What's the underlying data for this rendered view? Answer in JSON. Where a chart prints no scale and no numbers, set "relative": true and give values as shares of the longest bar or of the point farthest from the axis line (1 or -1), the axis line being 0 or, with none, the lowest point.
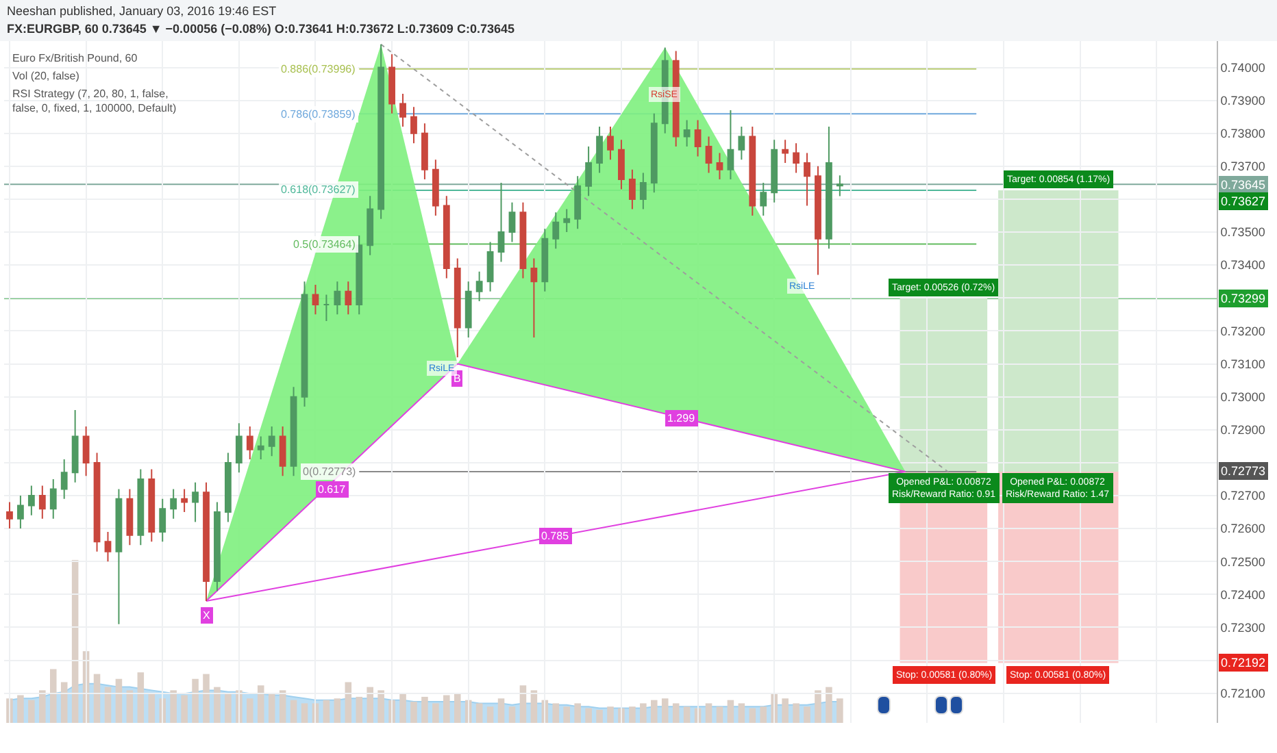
{
  "chart_data": [
    {
      "type": "candlestick",
      "subtitle": "Neeshan published, January 03, 2016 19:46 EST",
      "title": "FX:EURGBP, 60 0.73645 ▼ −0.00056 (−0.08%) O:0.73641 H:0.73672 L:0.73609 C:0.73645",
      "categories": [
        null,
        null,
        null,
        null,
        null,
        null,
        null,
        null,
        null,
        null,
        null,
        null,
        null,
        null,
        null,
        null,
        null,
        null,
        null,
        null,
        null,
        null,
        null,
        null,
        null,
        null,
        null,
        null,
        null,
        null,
        null,
        null,
        null,
        null,
        null,
        null,
        null,
        null,
        null,
        null,
        null,
        null,
        null,
        null,
        null,
        null,
        null,
        null,
        null,
        null,
        null,
        null,
        null,
        null,
        null,
        null,
        null,
        null,
        null,
        null,
        null,
        null,
        null,
        null,
        null,
        null,
        null,
        null,
        null,
        null,
        null,
        null,
        null,
        null,
        null,
        null,
        null,
        null,
        null,
        null,
        null,
        null,
        null,
        null,
        null,
        null,
        null,
        null,
        null,
        null,
        null,
        null,
        null,
        null,
        null,
        null,
        null,
        null,
        null,
        null,
        null,
        null,
        null,
        null,
        null,
        null,
        null,
        null,
        null,
        null,
        null
      ],
      "colors": [
        "#c9473d",
        "#4f9a62",
        "#4f9a62",
        "#c9473d",
        "#4f9a62",
        "#4f9a62",
        "#4f9a62",
        "#c9473d",
        "#c9473d",
        "#c9473d",
        "#4f9a62",
        "#c9473d",
        "#4f9a62",
        "#c9473d",
        "#4f9a62",
        "#4f9a62",
        "#c9473d",
        "#4f9a62",
        "#c9473d",
        "#4f9a62",
        "#4f9a62",
        "#4f9a62",
        "#c9473d",
        "#4f9a62",
        "#4f9a62",
        "#c9473d",
        "#4f9a62",
        "#4f9a62",
        "#c9473d",
        "#4f9a62",
        "#4f9a62",
        "#c9473d",
        "#4f9a62",
        "#4f9a62",
        "#4f9a62",
        "#c9473d",
        "#c9473d",
        "#c9473d",
        "#c9473d",
        "#c9473d",
        "#c9473d",
        "#c9473d",
        "#4f9a62",
        "#4f9a62",
        "#4f9a62",
        "#4f9a62",
        "#4f9a62",
        "#c9473d",
        "#c9473d",
        "#4f9a62",
        "#4f9a62",
        "#4f9a62",
        "#4f9a62",
        "#4f9a62",
        "#4f9a62",
        "#c9473d",
        "#c9473d",
        "#c9473d",
        "#4f9a62",
        "#4f9a62",
        "#4f9a62",
        "#c9473d",
        "#4f9a62",
        "#c9473d",
        "#c9473d",
        "#c9473d",
        "#4f9a62",
        "#4f9a62",
        "#c9473d",
        "#4f9a62",
        "#4f9a62",
        "#c9473d",
        "#c9473d",
        "#c9473d",
        "#c9473d",
        "#4f9a62",
        "#4f9a62",
        null,
        null,
        null,
        null,
        null,
        null,
        null,
        null,
        null,
        null,
        null,
        null,
        null,
        null,
        null,
        null,
        null,
        null,
        null,
        null,
        null,
        null,
        null,
        null,
        null,
        null,
        null,
        null,
        null,
        null,
        null,
        null,
        null,
        null
      ],
      "ohlc": [
        [
          0.7265,
          0.7268,
          0.726,
          0.7263
        ],
        [
          0.7263,
          0.727,
          0.726,
          0.7267
        ],
        [
          0.7267,
          0.7273,
          0.7264,
          0.727
        ],
        [
          0.727,
          0.7273,
          0.7263,
          0.7266
        ],
        [
          0.7266,
          0.7275,
          0.7263,
          0.7272
        ],
        [
          0.7272,
          0.7281,
          0.7269,
          0.7277
        ],
        [
          0.7277,
          0.7296,
          0.7274,
          0.7288
        ],
        [
          0.7288,
          0.7291,
          0.7276,
          0.728
        ],
        [
          0.728,
          0.7283,
          0.7253,
          0.7256
        ],
        [
          0.7256,
          0.7259,
          0.725,
          0.7253
        ],
        [
          0.7253,
          0.7272,
          0.7231,
          0.7269
        ],
        [
          0.7269,
          0.7272,
          0.7255,
          0.7258
        ],
        [
          0.7258,
          0.7278,
          0.7255,
          0.7275
        ],
        [
          0.7275,
          0.7278,
          0.7256,
          0.7259
        ],
        [
          0.7259,
          0.7269,
          0.7256,
          0.7266
        ],
        [
          0.7266,
          0.7272,
          0.7263,
          0.7269
        ],
        [
          0.7269,
          0.7272,
          0.7265,
          0.7268
        ],
        [
          0.7268,
          0.7274,
          0.7262,
          0.7271
        ],
        [
          0.7271,
          0.7274,
          0.7238,
          0.7244
        ],
        [
          0.7244,
          0.7268,
          0.7241,
          0.7265
        ],
        [
          0.7265,
          0.7283,
          0.7262,
          0.728
        ],
        [
          0.728,
          0.7292,
          0.7277,
          0.7288
        ],
        [
          0.7288,
          0.7291,
          0.7281,
          0.7284
        ],
        [
          0.7284,
          0.7288,
          0.7281,
          0.7285
        ],
        [
          0.7285,
          0.7291,
          0.7282,
          0.7288
        ],
        [
          0.7288,
          0.7291,
          0.7276,
          0.7279
        ],
        [
          0.7279,
          0.7303,
          0.7276,
          0.73
        ],
        [
          0.73,
          0.7335,
          0.7297,
          0.7331
        ],
        [
          0.7331,
          0.7334,
          0.7325,
          0.7328
        ],
        [
          0.7328,
          0.7331,
          0.7323,
          0.7328
        ],
        [
          0.7328,
          0.7335,
          0.7325,
          0.7332
        ],
        [
          0.7332,
          0.7335,
          0.7325,
          0.7328
        ],
        [
          0.7328,
          0.7349,
          0.7325,
          0.7346
        ],
        [
          0.7346,
          0.7361,
          0.7343,
          0.7357
        ],
        [
          0.7357,
          0.7407,
          0.7354,
          0.74
        ],
        [
          0.74,
          0.7404,
          0.7386,
          0.7389
        ],
        [
          0.7389,
          0.7392,
          0.7382,
          0.7385
        ],
        [
          0.7385,
          0.7388,
          0.7377,
          0.738
        ],
        [
          0.738,
          0.7383,
          0.7366,
          0.7369
        ],
        [
          0.7369,
          0.7372,
          0.7355,
          0.7358
        ],
        [
          0.7358,
          0.7361,
          0.7336,
          0.7339
        ],
        [
          0.7339,
          0.7342,
          0.7312,
          0.7321
        ],
        [
          0.7321,
          0.7335,
          0.7318,
          0.7332
        ],
        [
          0.7332,
          0.7338,
          0.7329,
          0.7335
        ],
        [
          0.7335,
          0.7347,
          0.7332,
          0.7344
        ],
        [
          0.7344,
          0.7365,
          0.7341,
          0.735
        ],
        [
          0.735,
          0.7359,
          0.7347,
          0.7356
        ],
        [
          0.7356,
          0.7359,
          0.7336,
          0.7339
        ],
        [
          0.7339,
          0.7342,
          0.7318,
          0.7335
        ],
        [
          0.7335,
          0.7351,
          0.7332,
          0.7348
        ],
        [
          0.7348,
          0.7356,
          0.7345,
          0.7353
        ],
        [
          0.7353,
          0.7357,
          0.735,
          0.7354
        ],
        [
          0.7354,
          0.7367,
          0.7351,
          0.7364
        ],
        [
          0.7364,
          0.7376,
          0.7361,
          0.7371
        ],
        [
          0.7371,
          0.7382,
          0.7368,
          0.7379
        ],
        [
          0.7379,
          0.7382,
          0.7372,
          0.7375
        ],
        [
          0.7375,
          0.7378,
          0.7363,
          0.7366
        ],
        [
          0.7366,
          0.7369,
          0.7357,
          0.736
        ],
        [
          0.736,
          0.7368,
          0.7357,
          0.7365
        ],
        [
          0.7365,
          0.7386,
          0.7362,
          0.7383
        ],
        [
          0.7383,
          0.7406,
          0.738,
          0.7402
        ],
        [
          0.7402,
          0.7405,
          0.7376,
          0.7379
        ],
        [
          0.7379,
          0.7384,
          0.7376,
          0.7381
        ],
        [
          0.7381,
          0.7384,
          0.7373,
          0.7376
        ],
        [
          0.7376,
          0.7379,
          0.7368,
          0.7371
        ],
        [
          0.7371,
          0.7374,
          0.7366,
          0.7369
        ],
        [
          0.7369,
          0.7387,
          0.7366,
          0.7375
        ],
        [
          0.7375,
          0.7382,
          0.7372,
          0.7379
        ],
        [
          0.7379,
          0.7382,
          0.7355,
          0.7358
        ],
        [
          0.7358,
          0.7365,
          0.7355,
          0.7362
        ],
        [
          0.7362,
          0.7378,
          0.7359,
          0.7375
        ],
        [
          0.7375,
          0.7378,
          0.7371,
          0.7374
        ],
        [
          0.7374,
          0.7377,
          0.7368,
          0.7371
        ],
        [
          0.7371,
          0.7374,
          0.7358,
          0.7367
        ],
        [
          0.7367,
          0.737,
          0.7337,
          0.7348
        ],
        [
          0.7348,
          0.7382,
          0.7345,
          0.7371
        ],
        [
          0.73641,
          0.73672,
          0.73609,
          0.73645
        ],
        null,
        null,
        null,
        null,
        null,
        null,
        null,
        null,
        null,
        null,
        null,
        null,
        null,
        null,
        null,
        null,
        null,
        null,
        null,
        null,
        null,
        null,
        null,
        null,
        null,
        null,
        null,
        null,
        null,
        null,
        null,
        null,
        null,
        null
      ],
      "series": [
        {
          "type": "area",
          "color": "#7ef07e",
          "values": [
            null,
            null,
            null,
            null,
            null,
            null,
            null,
            null,
            null,
            null,
            null,
            null,
            null,
            null,
            null,
            null,
            null,
            null,
            0.7238,
            null,
            null,
            null,
            null,
            null,
            null,
            null,
            null,
            null,
            null,
            null,
            null,
            null,
            null,
            null,
            0.7407,
            null,
            null,
            null,
            null,
            null,
            null,
            0.731,
            null,
            null,
            null,
            null,
            null,
            null,
            null,
            null,
            null,
            null,
            null,
            null,
            null,
            null,
            null,
            null,
            null,
            null,
            null,
            null,
            null,
            null,
            null,
            null,
            null,
            null,
            null,
            null,
            null,
            null,
            null,
            null,
            null,
            null,
            null,
            null,
            null,
            null,
            null,
            null,
            null,
            null,
            null,
            null,
            null,
            null,
            null,
            null,
            null,
            null,
            null,
            null,
            null,
            null,
            null,
            null,
            null,
            null,
            null,
            null,
            null,
            null,
            null,
            null,
            null,
            null,
            null,
            null,
            null
          ]
        },
        {
          "type": "area",
          "color": "#7ef07e",
          "values": [
            null,
            null,
            null,
            null,
            null,
            null,
            null,
            null,
            null,
            null,
            null,
            null,
            null,
            null,
            null,
            null,
            null,
            null,
            null,
            null,
            null,
            null,
            null,
            null,
            null,
            null,
            null,
            null,
            null,
            null,
            null,
            null,
            null,
            null,
            null,
            null,
            null,
            null,
            null,
            null,
            null,
            0.731,
            null,
            null,
            null,
            null,
            null,
            null,
            null,
            null,
            null,
            null,
            null,
            null,
            null,
            null,
            null,
            null,
            null,
            null,
            0.7406,
            null,
            null,
            null,
            null,
            null,
            null,
            null,
            null,
            null,
            null,
            null,
            null,
            null,
            null,
            null,
            null,
            null,
            null,
            null,
            null,
            null,
            0.72773,
            null,
            null,
            null,
            null,
            null,
            null,
            null,
            null,
            null,
            null,
            null,
            null,
            null,
            null,
            null,
            null,
            null,
            null,
            null,
            null,
            null,
            null,
            null,
            null,
            null,
            null,
            null,
            null
          ]
        },
        {
          "type": "line",
          "color": "#e040e0",
          "values": [
            null,
            null,
            null,
            null,
            null,
            null,
            null,
            null,
            null,
            null,
            null,
            null,
            null,
            null,
            null,
            null,
            null,
            null,
            0.7238,
            null,
            null,
            null,
            null,
            null,
            null,
            null,
            null,
            null,
            null,
            null,
            null,
            null,
            null,
            null,
            null,
            null,
            null,
            null,
            null,
            null,
            null,
            0.731,
            null,
            null,
            null,
            null,
            null,
            null,
            null,
            null,
            null,
            null,
            null,
            null,
            null,
            null,
            null,
            null,
            null,
            null,
            null,
            null,
            null,
            null,
            null,
            null,
            null,
            null,
            null,
            null,
            null,
            null,
            null,
            null,
            null,
            null,
            null,
            null,
            null,
            null,
            null,
            null,
            null,
            null,
            null,
            null,
            null,
            null,
            null,
            null,
            null,
            null,
            null,
            null,
            null,
            null,
            null,
            null,
            null,
            null,
            null,
            null,
            null,
            null,
            null,
            null,
            null,
            null,
            null,
            null,
            null
          ]
        },
        {
          "type": "line",
          "color": "#e040e0",
          "values": [
            null,
            null,
            null,
            null,
            null,
            null,
            null,
            null,
            null,
            null,
            null,
            null,
            null,
            null,
            null,
            null,
            null,
            null,
            null,
            null,
            null,
            null,
            null,
            null,
            null,
            null,
            null,
            null,
            null,
            null,
            null,
            null,
            null,
            null,
            null,
            null,
            null,
            null,
            null,
            null,
            null,
            0.731,
            null,
            null,
            null,
            null,
            null,
            null,
            null,
            null,
            null,
            null,
            null,
            null,
            null,
            null,
            null,
            null,
            null,
            null,
            null,
            null,
            null,
            null,
            null,
            null,
            null,
            null,
            null,
            null,
            null,
            null,
            null,
            null,
            null,
            null,
            null,
            null,
            null,
            null,
            null,
            null,
            0.72773,
            null,
            null,
            null,
            null,
            null,
            null,
            null,
            null,
            null,
            null,
            null,
            null,
            null,
            null,
            null,
            null,
            null,
            null,
            null,
            null,
            null,
            null,
            null,
            null,
            null,
            null,
            null,
            null
          ]
        },
        {
          "type": "line",
          "color": "#e040e0",
          "values": [
            null,
            null,
            null,
            null,
            null,
            null,
            null,
            null,
            null,
            null,
            null,
            null,
            null,
            null,
            null,
            null,
            null,
            null,
            0.7238,
            null,
            null,
            null,
            null,
            null,
            null,
            null,
            null,
            null,
            null,
            null,
            null,
            null,
            null,
            null,
            null,
            null,
            null,
            null,
            null,
            null,
            null,
            null,
            null,
            null,
            null,
            null,
            null,
            null,
            null,
            null,
            null,
            null,
            null,
            null,
            null,
            null,
            null,
            null,
            null,
            null,
            null,
            null,
            null,
            null,
            null,
            null,
            null,
            null,
            null,
            null,
            null,
            null,
            null,
            null,
            null,
            null,
            null,
            null,
            null,
            null,
            null,
            null,
            0.72773,
            null,
            null,
            null,
            null,
            null,
            null,
            null,
            null,
            null,
            null,
            null,
            null,
            null,
            null,
            null,
            null,
            null,
            null,
            null,
            null,
            null,
            null,
            null,
            null,
            null,
            null,
            null,
            null
          ]
        },
        {
          "type": "line",
          "color": "#9e9e9e",
          "line_style": "dotted",
          "values": [
            null,
            null,
            null,
            null,
            null,
            null,
            null,
            null,
            null,
            null,
            null,
            null,
            null,
            null,
            null,
            null,
            null,
            null,
            null,
            null,
            null,
            null,
            null,
            null,
            null,
            null,
            null,
            null,
            null,
            null,
            null,
            null,
            null,
            null,
            0.7407,
            null,
            null,
            null,
            null,
            null,
            null,
            null,
            null,
            null,
            null,
            null,
            null,
            null,
            null,
            null,
            null,
            null,
            null,
            null,
            null,
            null,
            null,
            null,
            null,
            null,
            null,
            null,
            null,
            null,
            null,
            null,
            null,
            null,
            null,
            null,
            null,
            null,
            null,
            null,
            null,
            null,
            null,
            null,
            null,
            null,
            null,
            null,
            null,
            null,
            null,
            null,
            0.7277,
            null,
            null,
            null,
            null,
            null,
            null,
            null,
            null,
            null,
            null,
            null,
            null,
            null,
            null,
            null,
            null,
            null,
            null,
            null,
            null,
            null,
            null,
            null,
            null
          ]
        }
      ],
      "bands": [
        {
          "axis": "y",
          "from": 0.72773,
          "to": 0.73299,
          "label": "Target: 0.00526 (0.72%)",
          "color": "#cde8cb"
        },
        {
          "axis": "y",
          "from": 0.72192,
          "to": 0.72773,
          "label": "Stop: 0.00581 (0.80%)",
          "color": "#f9caca"
        },
        {
          "axis": "y",
          "from": 0.72773,
          "to": 0.73627,
          "label": "Target: 0.00854 (1.17%)",
          "color": "#cde8cb"
        },
        {
          "axis": "y",
          "from": 0.72192,
          "to": 0.72773,
          "label": "Stop: 0.00581 (0.80%)",
          "color": "#f9caca"
        }
      ],
      "ylim": [
        0.7201,
        0.7408
      ],
      "yticks": [
        {
          "value": 0.721,
          "label": "0.72100"
        },
        {
          "value": 0.722,
          "label": null
        },
        {
          "value": 0.723,
          "label": "0.72300"
        },
        {
          "value": 0.724,
          "label": "0.72400"
        },
        {
          "value": 0.725,
          "label": "0.72500"
        },
        {
          "value": 0.726,
          "label": "0.72600"
        },
        {
          "value": 0.727,
          "label": "0.72700"
        },
        {
          "value": 0.728,
          "label": null
        },
        {
          "value": 0.729,
          "label": "0.72900"
        },
        {
          "value": 0.73,
          "label": "0.73000"
        },
        {
          "value": 0.731,
          "label": "0.73100"
        },
        {
          "value": 0.732,
          "label": "0.73200"
        },
        {
          "value": 0.733,
          "label": null
        },
        {
          "value": 0.734,
          "label": "0.73400"
        },
        {
          "value": 0.735,
          "label": "0.73500"
        },
        {
          "value": 0.736,
          "label": null
        },
        {
          "value": 0.737,
          "label": "0.73700"
        },
        {
          "value": 0.738,
          "label": "0.73800"
        },
        {
          "value": 0.739,
          "label": "0.73900"
        },
        {
          "value": 0.74,
          "label": "0.74000"
        }
      ],
      "tick_labels": "y",
      "grid": true,
      "ref_lines": [
        {
          "axis": "y",
          "value": 0.73996,
          "label": "0.886(0.73996)",
          "color": "#a8c050",
          "line_style": "solid"
        },
        {
          "axis": "y",
          "value": 0.73859,
          "label": "0.786(0.73859)",
          "color": "#6fa8dc",
          "line_style": "solid"
        },
        {
          "axis": "y",
          "value": 0.73627,
          "label": "0.618(0.73627)",
          "color": "#4fb89a",
          "line_style": "solid"
        },
        {
          "axis": "y",
          "value": 0.73464,
          "label": "0.5(0.73464)",
          "color": "#62bb5f",
          "line_style": "solid"
        },
        {
          "axis": "y",
          "value": 0.72773,
          "label": "0(0.72773)",
          "color": "#8a8a8a",
          "line_style": "solid"
        },
        {
          "axis": "y",
          "value": 0.73645,
          "label": "0.73645",
          "color": "#7fa99b",
          "line_style": "solid"
        },
        {
          "axis": "y",
          "value": 0.73299,
          "label": "0.73299",
          "color": "#1e9e2e",
          "line_style": "solid"
        }
      ],
      "annotations": [
        "0.617",
        "1.299",
        "0.785",
        "X",
        "B",
        "Euro Fx/British Pound, 60",
        "Vol (20, false)",
        "RSI Strategy (7, 20, 80, 1, false, false, 0, fixed, 1, 100000, Default)",
        "Opened P&L: 0.00872\nRisk/Reward Ratio: 0.91",
        "Opened P&L: 0.00872\nRisk/Reward Ratio: 1.47",
        "RsiLE",
        "RsiSE",
        "RsiLE",
        "0.73627",
        "0.72773",
        "0.72192"
      ]
    },
    {
      "type": "bar",
      "relative": true,
      "tick_labels": false,
      "categories": [
        null,
        null,
        null,
        null,
        null,
        null,
        null,
        null,
        null,
        null,
        null,
        null,
        null,
        null,
        null,
        null,
        null,
        null,
        null,
        null,
        null,
        null,
        null,
        null,
        null,
        null,
        null,
        null,
        null,
        null,
        null,
        null,
        null,
        null,
        null,
        null,
        null,
        null,
        null,
        null,
        null,
        null,
        null,
        null,
        null,
        null,
        null,
        null,
        null,
        null,
        null,
        null,
        null,
        null,
        null,
        null,
        null,
        null,
        null,
        null,
        null,
        null,
        null,
        null,
        null,
        null,
        null,
        null,
        null,
        null,
        null,
        null,
        null,
        null,
        null,
        null,
        null,
        null,
        null,
        null,
        null,
        null,
        null,
        null,
        null,
        null,
        null,
        null,
        null,
        null,
        null,
        null,
        null,
        null,
        null,
        null,
        null,
        null,
        null,
        null,
        null,
        null,
        null,
        null,
        null,
        null,
        null,
        null,
        null,
        null,
        null
      ],
      "series": [
        {
          "type": "bar",
          "color": "#dccfc6",
          "values": [
            0.15,
            0.17,
            0.14,
            0.2,
            0.33,
            0.25,
            1.0,
            0.44,
            0.3,
            0.22,
            0.27,
            0.2,
            0.31,
            0.18,
            0.15,
            0.2,
            0.17,
            0.27,
            0.3,
            0.22,
            0.18,
            0.2,
            0.15,
            0.23,
            0.18,
            0.2,
            0.14,
            0.12,
            0.12,
            0.14,
            0.15,
            0.25,
            0.16,
            0.22,
            0.2,
            0.14,
            0.18,
            0.13,
            0.16,
            0.12,
            0.17,
            0.18,
            0.14,
            0.12,
            0.1,
            0.15,
            0.1,
            0.23,
            0.2,
            0.14,
            0.12,
            0.1,
            0.12,
            0.09,
            0.08,
            0.1,
            0.09,
            0.1,
            0.12,
            0.14,
            0.15,
            0.12,
            0.1,
            0.09,
            0.12,
            0.1,
            0.14,
            0.12,
            0.09,
            0.1,
            0.18,
            0.15,
            0.12,
            0.1,
            0.2,
            0.22,
            0.15,
            null,
            null,
            null,
            null,
            null,
            null,
            null,
            null,
            null,
            null,
            null,
            null,
            null,
            null,
            null,
            null,
            null,
            null,
            null,
            null,
            null,
            null,
            null,
            null,
            null,
            null,
            null,
            null,
            null,
            null,
            null,
            null,
            null,
            null
          ]
        },
        {
          "type": "area",
          "color": "#9fd0ef",
          "values": [
            0.14,
            0.15,
            0.15,
            0.16,
            0.18,
            0.19,
            0.23,
            0.24,
            0.24,
            0.23,
            0.22,
            0.22,
            0.21,
            0.2,
            0.19,
            0.18,
            0.18,
            0.19,
            0.2,
            0.2,
            0.19,
            0.19,
            0.18,
            0.18,
            0.17,
            0.17,
            0.16,
            0.15,
            0.14,
            0.14,
            0.14,
            0.15,
            0.15,
            0.15,
            0.15,
            0.14,
            0.14,
            0.13,
            0.13,
            0.13,
            0.13,
            0.13,
            0.13,
            0.12,
            0.12,
            0.12,
            0.11,
            0.12,
            0.12,
            0.12,
            0.11,
            0.11,
            0.1,
            0.1,
            0.09,
            0.09,
            0.09,
            0.09,
            0.09,
            0.1,
            0.1,
            0.1,
            0.1,
            0.1,
            0.1,
            0.1,
            0.1,
            0.1,
            0.1,
            0.1,
            0.11,
            0.11,
            0.11,
            0.11,
            0.12,
            0.13,
            0.13,
            null,
            null,
            null,
            null,
            null,
            null,
            null,
            null,
            null,
            null,
            null,
            null,
            null,
            null,
            null,
            null,
            null,
            null,
            null,
            null,
            null,
            null,
            null,
            null,
            null,
            null,
            null,
            null,
            null,
            null,
            null,
            null,
            null,
            null
          ]
        }
      ]
    }
  ]
}
